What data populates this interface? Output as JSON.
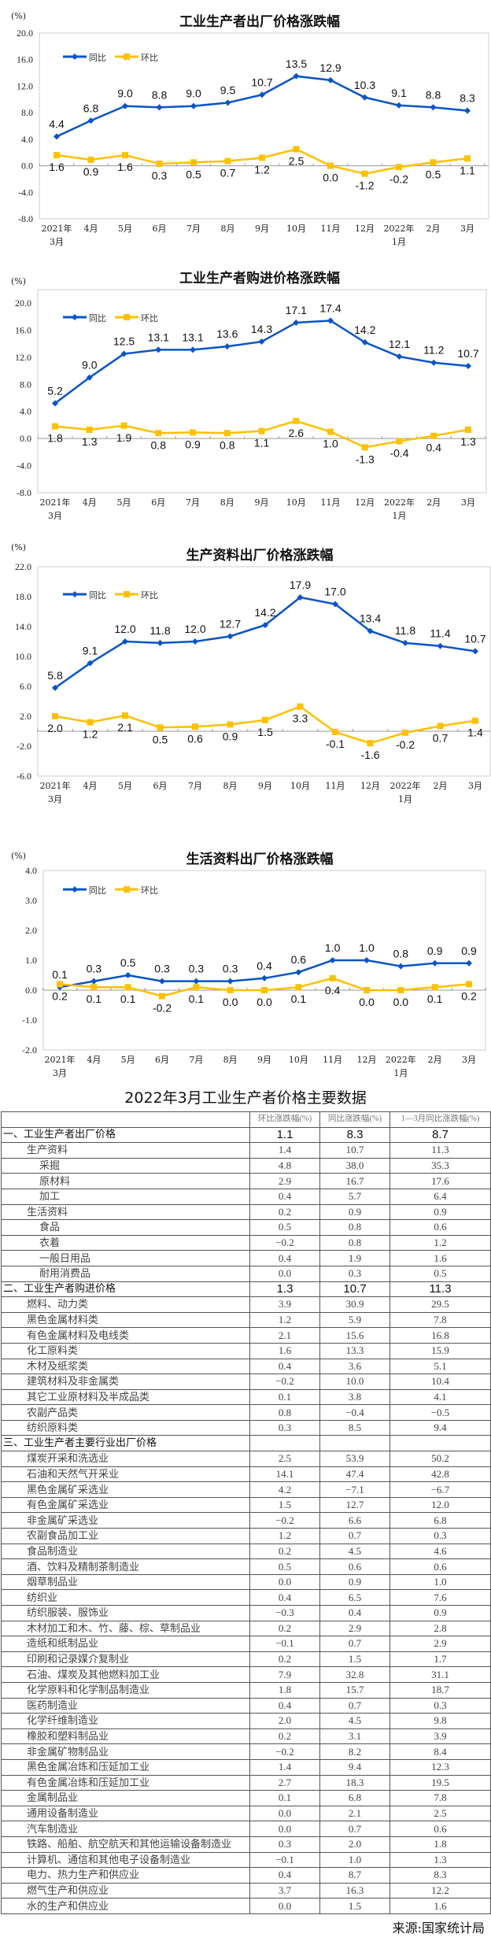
{
  "colors": {
    "yoy": "#0a54c8",
    "mom": "#ffc000",
    "axis": "#cfcfcf"
  },
  "legend": {
    "yoy": "同比",
    "mom": "环比"
  },
  "unit": "(%)",
  "chart_data": [
    {
      "type": "line",
      "title": "工业生产者出厂价格涨跌幅",
      "ylabel": "(%)",
      "ylim": [
        -8,
        20
      ],
      "yticks": [
        "20.0",
        "16.0",
        "12.0",
        "8.0",
        "4.0",
        "0.0",
        "-4.0",
        "-8.0"
      ],
      "ytick_values": [
        20,
        16,
        12,
        8,
        4,
        0,
        -4,
        -8
      ],
      "categories": [
        [
          "2021年",
          "3月"
        ],
        [
          "4月"
        ],
        [
          "5月"
        ],
        [
          "6月"
        ],
        [
          "7月"
        ],
        [
          "8月"
        ],
        [
          "9月"
        ],
        [
          "10月"
        ],
        [
          "11月"
        ],
        [
          "12月"
        ],
        [
          "2022年",
          "1月"
        ],
        [
          "2月"
        ],
        [
          "3月"
        ]
      ],
      "series": [
        {
          "name": "同比",
          "values": [
            4.4,
            6.8,
            9.0,
            8.8,
            9.0,
            9.5,
            10.7,
            13.5,
            12.9,
            10.3,
            9.1,
            8.8,
            8.3
          ]
        },
        {
          "name": "环比",
          "values": [
            1.6,
            0.9,
            1.6,
            0.3,
            0.5,
            0.7,
            1.2,
            2.5,
            0.0,
            -1.2,
            -0.2,
            0.5,
            1.1
          ]
        }
      ],
      "legend": "top-left"
    },
    {
      "type": "line",
      "title": "工业生产者购进价格涨跌幅",
      "ylabel": "(%)",
      "ylim": [
        -8,
        20
      ],
      "yticks": [
        "20.0",
        "16.0",
        "12.0",
        "8.0",
        "4.0",
        "0.0",
        "-4.0",
        "-8.0"
      ],
      "ytick_values": [
        20,
        16,
        12,
        8,
        4,
        0,
        -4,
        -8
      ],
      "categories": [
        [
          "2021年",
          "3月"
        ],
        [
          "4月"
        ],
        [
          "5月"
        ],
        [
          "6月"
        ],
        [
          "7月"
        ],
        [
          "8月"
        ],
        [
          "9月"
        ],
        [
          "10月"
        ],
        [
          "11月"
        ],
        [
          "12月"
        ],
        [
          "2022年",
          "1月"
        ],
        [
          "2月"
        ],
        [
          "3月"
        ]
      ],
      "series": [
        {
          "name": "同比",
          "values": [
            5.2,
            9.0,
            12.5,
            13.1,
            13.1,
            13.6,
            14.3,
            17.1,
            17.4,
            14.2,
            12.1,
            11.2,
            10.7
          ]
        },
        {
          "name": "环比",
          "values": [
            1.8,
            1.3,
            1.9,
            0.8,
            0.9,
            0.8,
            1.1,
            2.6,
            1.0,
            -1.3,
            -0.4,
            0.4,
            1.3
          ]
        }
      ],
      "legend": "top-left"
    },
    {
      "type": "line",
      "title": "生产资料出厂价格涨跌幅",
      "ylabel": "(%)",
      "ylim": [
        -6,
        22
      ],
      "yticks": [
        "22.0",
        "18.0",
        "14.0",
        "10.0",
        "6.0",
        "2.0",
        "-2.0",
        "-6.0"
      ],
      "ytick_values": [
        22,
        18,
        14,
        10,
        6,
        2,
        -2,
        -6
      ],
      "categories": [
        [
          "2021年",
          "3月"
        ],
        [
          "4月"
        ],
        [
          "5月"
        ],
        [
          "6月"
        ],
        [
          "7月"
        ],
        [
          "8月"
        ],
        [
          "9月"
        ],
        [
          "10月"
        ],
        [
          "11月"
        ],
        [
          "12月"
        ],
        [
          "2022年",
          "1月"
        ],
        [
          "2月"
        ],
        [
          "3月"
        ]
      ],
      "series": [
        {
          "name": "同比",
          "values": [
            5.8,
            9.1,
            12.0,
            11.8,
            12.0,
            12.7,
            14.2,
            17.9,
            17.0,
            13.4,
            11.8,
            11.4,
            10.7
          ]
        },
        {
          "name": "环比",
          "values": [
            2.0,
            1.2,
            2.1,
            0.5,
            0.6,
            0.9,
            1.5,
            3.3,
            -0.1,
            -1.6,
            -0.2,
            0.7,
            1.4
          ]
        }
      ],
      "legend": "top-left"
    },
    {
      "type": "line",
      "title": "生活资料出厂价格涨跌幅",
      "ylabel": "(%)",
      "ylim": [
        -2,
        4
      ],
      "yticks": [
        "4.0",
        "3.0",
        "2.0",
        "1.0",
        "0.0",
        "-1.0",
        "-2.0"
      ],
      "ytick_values": [
        4,
        3,
        2,
        1,
        0,
        -1,
        -2
      ],
      "categories": [
        [
          "2021年",
          "3月"
        ],
        [
          "4月"
        ],
        [
          "5月"
        ],
        [
          "6月"
        ],
        [
          "7月"
        ],
        [
          "8月"
        ],
        [
          "9月"
        ],
        [
          "10月"
        ],
        [
          "11月"
        ],
        [
          "12月"
        ],
        [
          "2022年",
          "1月"
        ],
        [
          "2月"
        ],
        [
          "3月"
        ]
      ],
      "series": [
        {
          "name": "同比",
          "values": [
            0.1,
            0.3,
            0.5,
            0.3,
            0.3,
            0.3,
            0.4,
            0.6,
            1.0,
            1.0,
            0.8,
            0.9,
            0.9
          ]
        },
        {
          "name": "环比",
          "values": [
            0.2,
            0.1,
            0.1,
            -0.2,
            0.1,
            0.0,
            0.0,
            0.1,
            0.4,
            0.0,
            0.0,
            0.1,
            0.2
          ]
        }
      ],
      "legend": "top-left"
    }
  ],
  "table": {
    "title": "2022年3月工业生产者价格主要数据",
    "headers": [
      "",
      "环比涨跌幅(%)",
      "同比涨跌幅(%)",
      "1—3月同比涨跌幅(%)"
    ],
    "rows": [
      {
        "name": "一、工业生产者出厂价格",
        "mom": "1.1",
        "yoy": "8.3",
        "ytd": "8.7",
        "level": 0
      },
      {
        "name": "生产资料",
        "mom": "1.4",
        "yoy": "10.7",
        "ytd": "11.3",
        "level": 1
      },
      {
        "name": "采掘",
        "mom": "4.8",
        "yoy": "38.0",
        "ytd": "35.3",
        "level": 2
      },
      {
        "name": "原材料",
        "mom": "2.9",
        "yoy": "16.7",
        "ytd": "17.6",
        "level": 2
      },
      {
        "name": "加工",
        "mom": "0.4",
        "yoy": "5.7",
        "ytd": "6.4",
        "level": 2
      },
      {
        "name": "生活资料",
        "mom": "0.2",
        "yoy": "0.9",
        "ytd": "0.9",
        "level": 1
      },
      {
        "name": "食品",
        "mom": "0.5",
        "yoy": "0.8",
        "ytd": "0.6",
        "level": 2
      },
      {
        "name": "衣着",
        "mom": "−0.2",
        "yoy": "0.8",
        "ytd": "1.2",
        "level": 2
      },
      {
        "name": "一般日用品",
        "mom": "0.4",
        "yoy": "1.9",
        "ytd": "1.6",
        "level": 2
      },
      {
        "name": "耐用消费品",
        "mom": "0.0",
        "yoy": "0.3",
        "ytd": "0.5",
        "level": 2
      },
      {
        "name": "二、工业生产者购进价格",
        "mom": "1.3",
        "yoy": "10.7",
        "ytd": "11.3",
        "level": 0
      },
      {
        "name": "燃料、动力类",
        "mom": "3.9",
        "yoy": "30.9",
        "ytd": "29.5",
        "level": 1
      },
      {
        "name": "黑色金属材料类",
        "mom": "1.2",
        "yoy": "5.9",
        "ytd": "7.8",
        "level": 1
      },
      {
        "name": "有色金属材料及电线类",
        "mom": "2.1",
        "yoy": "15.6",
        "ytd": "16.8",
        "level": 1
      },
      {
        "name": "化工原料类",
        "mom": "1.6",
        "yoy": "13.3",
        "ytd": "15.9",
        "level": 1
      },
      {
        "name": "木材及纸浆类",
        "mom": "0.4",
        "yoy": "3.6",
        "ytd": "5.1",
        "level": 1
      },
      {
        "name": "建筑材料及非金属类",
        "mom": "−0.2",
        "yoy": "10.0",
        "ytd": "10.4",
        "level": 1
      },
      {
        "name": "其它工业原材料及半成品类",
        "mom": "0.1",
        "yoy": "3.8",
        "ytd": "4.1",
        "level": 1
      },
      {
        "name": "农副产品类",
        "mom": "0.8",
        "yoy": "−0.4",
        "ytd": "−0.5",
        "level": 1
      },
      {
        "name": "纺织原料类",
        "mom": "0.3",
        "yoy": "8.5",
        "ytd": "9.4",
        "level": 1
      },
      {
        "name": "三、工业生产者主要行业出厂价格",
        "mom": "",
        "yoy": "",
        "ytd": "",
        "level": 0
      },
      {
        "name": "煤炭开采和洗选业",
        "mom": "2.5",
        "yoy": "53.9",
        "ytd": "50.2",
        "level": 1
      },
      {
        "name": "石油和天然气开采业",
        "mom": "14.1",
        "yoy": "47.4",
        "ytd": "42.8",
        "level": 1
      },
      {
        "name": "黑色金属矿采选业",
        "mom": "4.2",
        "yoy": "−7.1",
        "ytd": "−6.7",
        "level": 1
      },
      {
        "name": "有色金属矿采选业",
        "mom": "1.5",
        "yoy": "12.7",
        "ytd": "12.0",
        "level": 1
      },
      {
        "name": "非金属矿采选业",
        "mom": "−0.2",
        "yoy": "6.6",
        "ytd": "6.8",
        "level": 1
      },
      {
        "name": "农副食品加工业",
        "mom": "1.2",
        "yoy": "0.7",
        "ytd": "0.3",
        "level": 1
      },
      {
        "name": "食品制造业",
        "mom": "0.2",
        "yoy": "4.5",
        "ytd": "4.6",
        "level": 1
      },
      {
        "name": "酒、饮料及精制茶制造业",
        "mom": "0.5",
        "yoy": "0.6",
        "ytd": "0.6",
        "level": 1
      },
      {
        "name": "烟草制品业",
        "mom": "0.0",
        "yoy": "0.9",
        "ytd": "1.0",
        "level": 1
      },
      {
        "name": "纺织业",
        "mom": "0.4",
        "yoy": "6.5",
        "ytd": "7.6",
        "level": 1
      },
      {
        "name": "纺织服装、服饰业",
        "mom": "−0.3",
        "yoy": "0.4",
        "ytd": "0.9",
        "level": 1
      },
      {
        "name": "木材加工和木、竹、藤、棕、草制品业",
        "mom": "0.2",
        "yoy": "2.9",
        "ytd": "2.8",
        "level": 1
      },
      {
        "name": "造纸和纸制品业",
        "mom": "−0.1",
        "yoy": "0.7",
        "ytd": "2.9",
        "level": 1
      },
      {
        "name": "印刷和记录媒介复制业",
        "mom": "0.2",
        "yoy": "1.5",
        "ytd": "1.7",
        "level": 1
      },
      {
        "name": "石油、煤炭及其他燃料加工业",
        "mom": "7.9",
        "yoy": "32.8",
        "ytd": "31.1",
        "level": 1
      },
      {
        "name": "化学原料和化学制品制造业",
        "mom": "1.8",
        "yoy": "15.7",
        "ytd": "18.7",
        "level": 1
      },
      {
        "name": "医药制造业",
        "mom": "0.4",
        "yoy": "0.7",
        "ytd": "0.3",
        "level": 1
      },
      {
        "name": "化学纤维制造业",
        "mom": "2.0",
        "yoy": "4.5",
        "ytd": "9.8",
        "level": 1
      },
      {
        "name": "橡胶和塑料制品业",
        "mom": "0.2",
        "yoy": "3.1",
        "ytd": "3.9",
        "level": 1
      },
      {
        "name": "非金属矿物制品业",
        "mom": "−0.2",
        "yoy": "8.2",
        "ytd": "8.4",
        "level": 1
      },
      {
        "name": "黑色金属冶炼和压延加工业",
        "mom": "1.4",
        "yoy": "9.4",
        "ytd": "12.3",
        "level": 1
      },
      {
        "name": "有色金属冶炼和压延加工业",
        "mom": "2.7",
        "yoy": "18.3",
        "ytd": "19.5",
        "level": 1
      },
      {
        "name": "金属制品业",
        "mom": "0.1",
        "yoy": "6.8",
        "ytd": "7.8",
        "level": 1
      },
      {
        "name": "通用设备制造业",
        "mom": "0.0",
        "yoy": "2.1",
        "ytd": "2.5",
        "level": 1
      },
      {
        "name": "汽车制造业",
        "mom": "0.0",
        "yoy": "0.7",
        "ytd": "0.6",
        "level": 1
      },
      {
        "name": "铁路、船舶、航空航天和其他运输设备制造业",
        "mom": "0.3",
        "yoy": "2.0",
        "ytd": "1.8",
        "level": 1
      },
      {
        "name": "计算机、通信和其他电子设备制造业",
        "mom": "−0.1",
        "yoy": "1.0",
        "ytd": "1.3",
        "level": 1
      },
      {
        "name": "电力、热力生产和供应业",
        "mom": "0.4",
        "yoy": "8.7",
        "ytd": "8.3",
        "level": 1
      },
      {
        "name": "燃气生产和供应业",
        "mom": "3.7",
        "yoy": "16.3",
        "ytd": "12.2",
        "level": 1
      },
      {
        "name": "水的生产和供应业",
        "mom": "0.0",
        "yoy": "1.5",
        "ytd": "1.6",
        "level": 1
      }
    ]
  },
  "source": "来源:国家统计局"
}
